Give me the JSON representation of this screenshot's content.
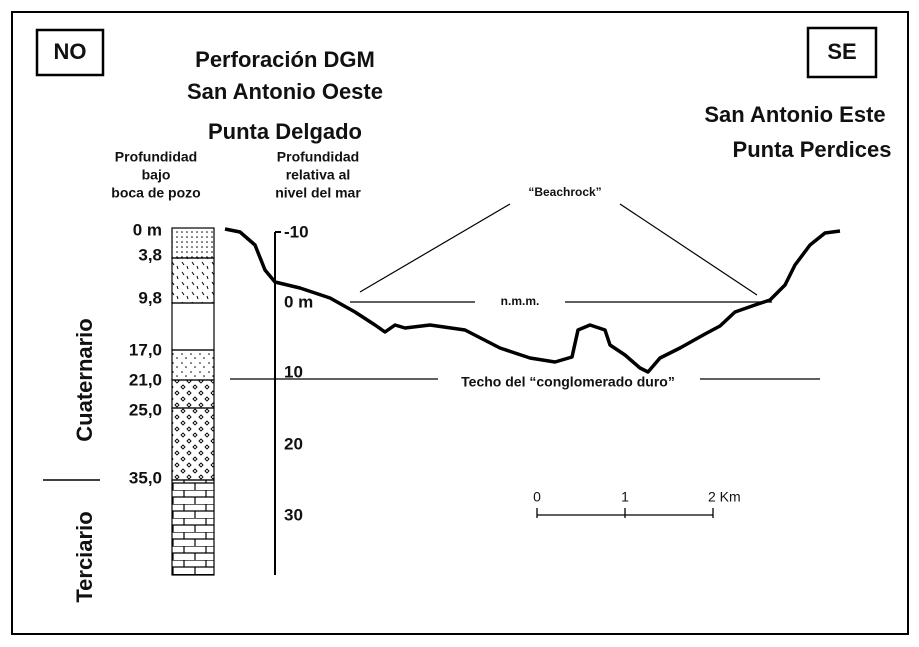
{
  "header": {
    "left_box": "NO",
    "right_box": "SE",
    "title_lines": [
      "Perforación DGM",
      "San Antonio Oeste",
      "Punta Delgado"
    ],
    "right_lines": [
      "San Antonio Este",
      "Punta Perdices"
    ]
  },
  "columns": {
    "left_heading": [
      "Profundidad",
      "bajo",
      "boca de pozo"
    ],
    "right_heading": [
      "Profundidad",
      "relativa al",
      "nivel del mar"
    ]
  },
  "depths": [
    "0 m",
    "3,8",
    "9,8",
    "17,0",
    "21,0",
    "25,0",
    "35,0"
  ],
  "axis_labels": [
    "-10",
    "0 m",
    "10",
    "20",
    "30"
  ],
  "periods": [
    "Cuaternario",
    "Terciario"
  ],
  "annotations": {
    "beachrock": "“Beachrock”",
    "sea_level": "n.m.m.",
    "conglomerate": "Techo del “conglomerado duro”"
  },
  "scale": [
    "0",
    "1",
    "2 Km"
  ]
}
